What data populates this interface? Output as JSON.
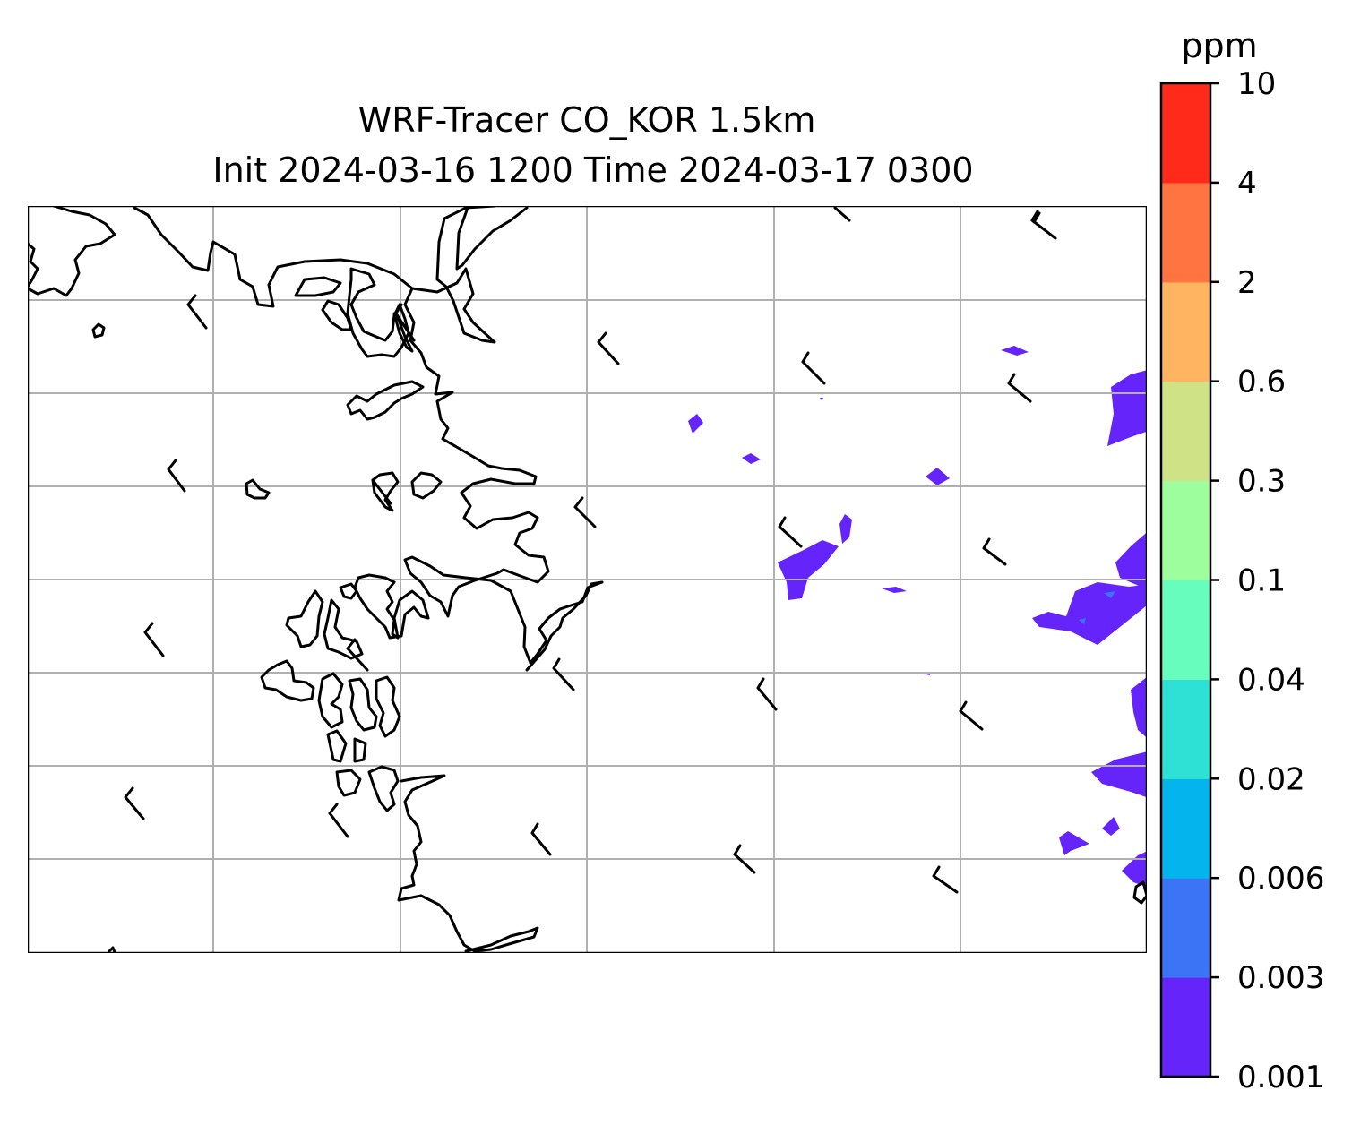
{
  "title": {
    "line1": "WRF-Tracer CO_KOR 1.5km",
    "line2": "Init 2024-03-16 1200 Time 2024-03-17 0300"
  },
  "colorbar": {
    "unit_label": "ppm",
    "levels": [
      "0.001",
      "0.003",
      "0.006",
      "0.02",
      "0.04",
      "0.1",
      "0.3",
      "0.6",
      "2",
      "4",
      "10"
    ],
    "colors": [
      "#6424fa",
      "#3b74f4",
      "#03b4ed",
      "#2ee1d5",
      "#66fdbd",
      "#9dfe9e",
      "#d0e286",
      "#ffb461",
      "#ff7440",
      "#ff2a19"
    ]
  },
  "map": {
    "gridlines": true,
    "coastline_color": "#000000",
    "grid_color": "#b0b0b0",
    "field_fill_colors": [
      "#6424fa",
      "#3b74f4"
    ],
    "wind_barbs": true
  }
}
